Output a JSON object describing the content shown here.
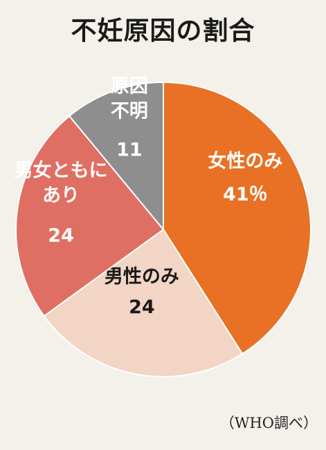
{
  "title": "不妊原因の割合",
  "source": "（WHO調べ）",
  "chart_data": {
    "type": "pie",
    "title": "不妊原因の割合",
    "slices": [
      {
        "key": "female",
        "label_lines": [
          "女性のみ"
        ],
        "value": 41,
        "value_text": "41％",
        "color": "#e87125",
        "text": "light"
      },
      {
        "key": "male",
        "label_lines": [
          "男性のみ"
        ],
        "value": 24,
        "value_text": "24",
        "color": "#f2d5c4",
        "text": "dark"
      },
      {
        "key": "both",
        "label_lines": [
          "男女ともに",
          "あり"
        ],
        "value": 24,
        "value_text": "24",
        "color": "#e06f63",
        "text": "light"
      },
      {
        "key": "unknown",
        "label_lines": [
          "原因",
          "不明"
        ],
        "value": 11,
        "value_text": "11",
        "color": "#8e8e8e",
        "text": "light"
      }
    ],
    "start": "12 o'clock",
    "direction": "clockwise",
    "legend": "none"
  }
}
